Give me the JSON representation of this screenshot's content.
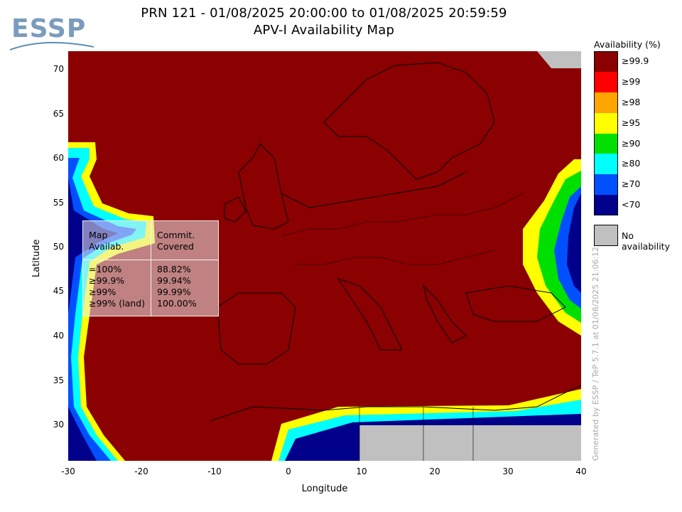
{
  "header": {
    "title_line1": "PRN 121 - 01/08/2025 20:00:00 to 01/08/2025 20:59:59",
    "title_line2": "APV-I Availability Map"
  },
  "logo": {
    "text": "ESSP"
  },
  "axes": {
    "xlabel": "Longitude",
    "ylabel": "Latitude",
    "x_ticks": [
      "-30",
      "-20",
      "-10",
      "0",
      "10",
      "20",
      "30",
      "40"
    ],
    "y_ticks": [
      "70",
      "65",
      "60",
      "55",
      "50",
      "45",
      "40",
      "35",
      "30"
    ],
    "x_range": [
      -30,
      40
    ],
    "y_range": [
      26,
      72.5
    ]
  },
  "legend": {
    "title": "Availability (%)",
    "items": [
      {
        "label": "≥99.9",
        "color": "#8b0000"
      },
      {
        "label": "≥99",
        "color": "#ff0000"
      },
      {
        "label": "≥98",
        "color": "#ffa500"
      },
      {
        "label": "≥95",
        "color": "#ffff00"
      },
      {
        "label": "≥90",
        "color": "#00e000"
      },
      {
        "label": "≥80",
        "color": "#00ffff"
      },
      {
        "label": "≥70",
        "color": "#0050ff"
      },
      {
        "label": "<70",
        "color": "#00008b"
      }
    ],
    "no_availability": {
      "label": "No availability",
      "color": "#c0c0c0"
    }
  },
  "stats": {
    "col1_header": [
      "Map",
      "Availab."
    ],
    "col2_header": [
      "Commit.",
      "Covered"
    ],
    "rows": [
      {
        "map": "=100%",
        "covered": "88.82%"
      },
      {
        "map": "≥99.9%",
        "covered": "99.94%"
      },
      {
        "map": "≥99%",
        "covered": "99.99%"
      },
      {
        "map": "≥99% (land)",
        "covered": "100.00%"
      }
    ]
  },
  "credit": "Generated by ESSP / TeP 5.7.1 at 01/08/2025 21:06:12"
}
